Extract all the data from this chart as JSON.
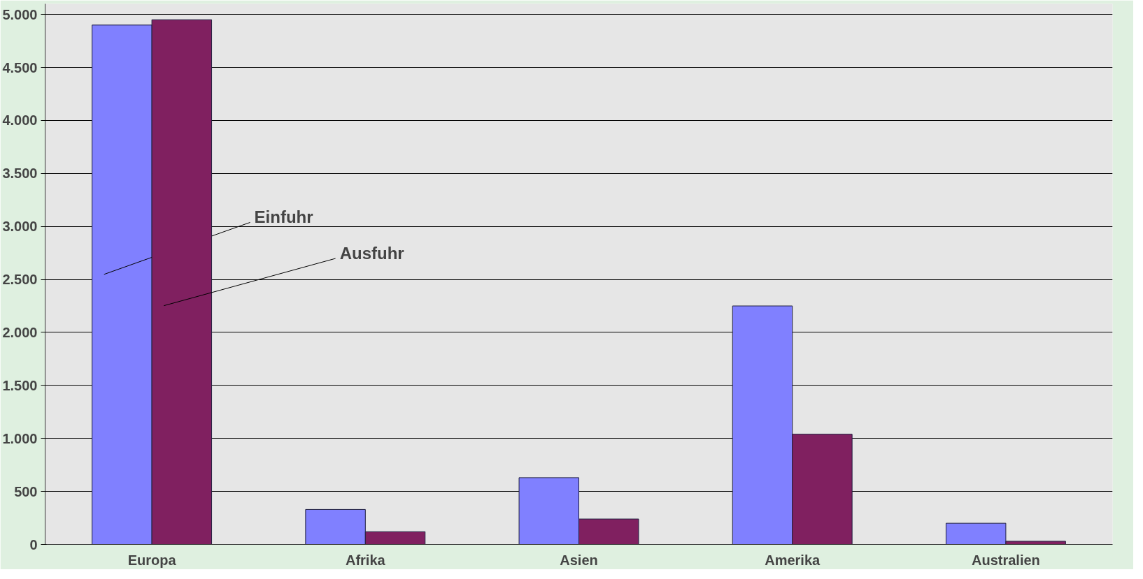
{
  "chart_data": {
    "type": "bar",
    "categories": [
      "Europa",
      "Afrika",
      "Asien",
      "Amerika",
      "Australien"
    ],
    "series": [
      {
        "name": "Einfuhr",
        "color": "#8080ff",
        "values": [
          4900,
          330,
          630,
          2250,
          200
        ]
      },
      {
        "name": "Ausfuhr",
        "color": "#802060",
        "values": [
          4950,
          120,
          240,
          1040,
          30
        ]
      }
    ],
    "ylim": [
      0,
      5000
    ],
    "yticks": [
      0,
      {
        "value": 500,
        "label": "500"
      },
      {
        "value": 1000,
        "label": "1.000"
      },
      {
        "value": 1500,
        "label": "1.500"
      },
      {
        "value": 2000,
        "label": "2.000"
      },
      {
        "value": 2500,
        "label": "2.500"
      },
      {
        "value": 3000,
        "label": "3.000"
      },
      {
        "value": 3500,
        "label": "3.500"
      },
      {
        "value": 4000,
        "label": "4.000"
      },
      {
        "value": 4500,
        "label": "4.500"
      },
      {
        "value": 5000,
        "label": "5.000"
      }
    ],
    "grid": "y"
  }
}
